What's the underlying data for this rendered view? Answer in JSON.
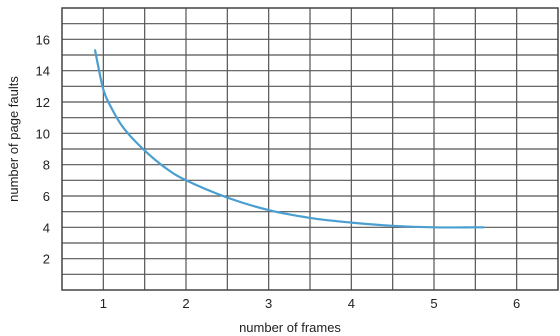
{
  "chart_data": {
    "type": "line",
    "xlabel": "number of frames",
    "ylabel": "number of page faults",
    "xlim": [
      0.5,
      6.5
    ],
    "ylim": [
      0,
      18
    ],
    "x_ticks": [
      "1",
      "2",
      "3",
      "4",
      "5",
      "6"
    ],
    "y_ticks": [
      "2",
      "4",
      "6",
      "8",
      "10",
      "12",
      "14",
      "16"
    ],
    "grid": true,
    "series": [
      {
        "color": "#4a9fd0",
        "x": [
          0.9,
          1.0,
          1.1,
          1.25,
          1.5,
          1.75,
          2.0,
          2.5,
          3.0,
          3.5,
          4.0,
          4.5,
          5.0,
          5.5,
          5.6
        ],
        "y": [
          15.3,
          12.8,
          11.6,
          10.3,
          8.9,
          7.8,
          7.0,
          5.9,
          5.1,
          4.6,
          4.3,
          4.1,
          4.0,
          4.0,
          4.0
        ]
      }
    ]
  }
}
